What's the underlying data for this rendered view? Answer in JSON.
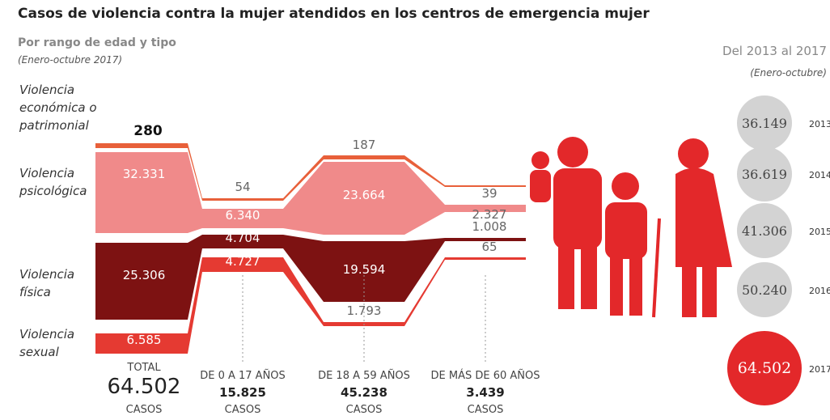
{
  "title": "Casos de violencia contra la mujer atendidos en los centros de emergencia mujer",
  "subtitle": "Por rango de edad y tipo",
  "period": "(Enero-octubre 2017)",
  "types": [
    "Violencia económica o patrimonial",
    "Violencia psicológica",
    "Violencia física",
    "Violencia sexual"
  ],
  "groups": [
    {
      "label": "TOTAL",
      "total": "64.502",
      "unit": "CASOS",
      "values": [
        "280",
        "32.331",
        "25.306",
        "6.585"
      ]
    },
    {
      "label": "DE 0 A 17 AÑOS",
      "total": "15.825",
      "unit": "CASOS",
      "values": [
        "54",
        "6.340",
        "4.704",
        "4.727"
      ]
    },
    {
      "label": "DE 18 A 59 AÑOS",
      "total": "45.238",
      "unit": "CASOS",
      "values": [
        "187",
        "23.664",
        "19.594",
        "1.793"
      ]
    },
    {
      "label": "DE MÁS DE 60 AÑOS",
      "total": "3.439",
      "unit": "CASOS",
      "values": [
        "39",
        "2.327",
        "1.008",
        "65"
      ]
    }
  ],
  "history": {
    "title": "Del 2013 al 2017",
    "period": "(Enero-octubre)",
    "years": [
      "2013",
      "2014",
      "2015",
      "2016",
      "2017"
    ],
    "values": [
      "36.149",
      "36.619",
      "41.306",
      "50.240",
      "64.502"
    ]
  }
}
